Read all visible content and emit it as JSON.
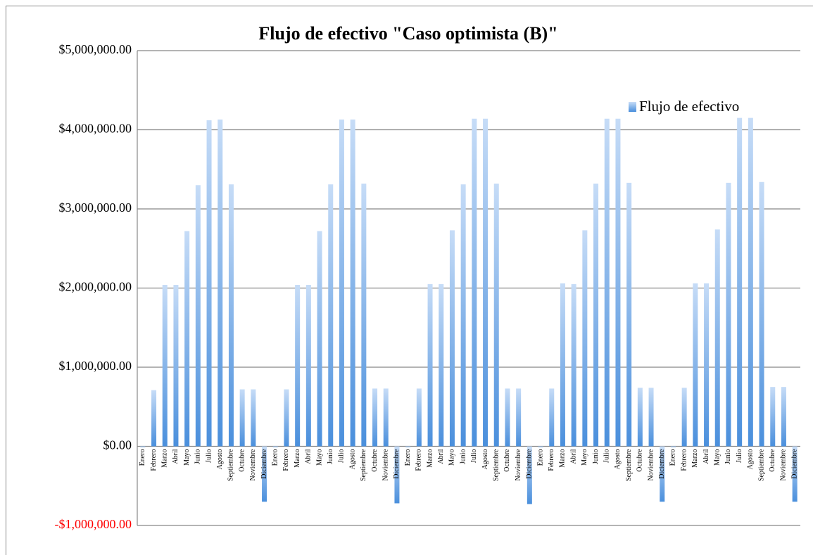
{
  "chart_data": {
    "type": "bar",
    "title": "Flujo de efectivo \"Caso optimista (B)\"",
    "legend_label": "Flujo de efectivo",
    "color": "#4a8fdc",
    "negative_tick_color": "#ff0000",
    "categories": [
      "Enero",
      "Febrero",
      "Marzo",
      "Abril",
      "Mayo",
      "Junio",
      "Julio",
      "Agosto",
      "Septiembre",
      "Octubre",
      "Noviembre",
      "Diciembre",
      "Enero",
      "Febrero",
      "Marzo",
      "Abril",
      "Mayo",
      "Junio",
      "Julio",
      "Agosto",
      "Septiembre",
      "Octubre",
      "Noviembre",
      "Diciembre",
      "Enero",
      "Febrero",
      "Marzo",
      "Abril",
      "Mayo",
      "Junio",
      "Julio",
      "Agosto",
      "Septiembre",
      "Octubre",
      "Noviembre",
      "Diciembre",
      "Enero",
      "Febrero",
      "Marzo",
      "Abril",
      "Mayo",
      "Junio",
      "Julio",
      "Agosto",
      "Septiembre",
      "Octubre",
      "Noviembre",
      "Diciembre",
      "Enero",
      "Febrero",
      "Marzo",
      "Abril",
      "Mayo",
      "Junio",
      "Julio",
      "Agosto",
      "Septiembre",
      "Octubre",
      "Noviembre",
      "Diciembre"
    ],
    "values": [
      -10000,
      710000,
      2040000,
      2040000,
      2720000,
      3300000,
      4120000,
      4130000,
      3310000,
      720000,
      720000,
      -700000,
      -10000,
      720000,
      2040000,
      2040000,
      2720000,
      3310000,
      4130000,
      4130000,
      3320000,
      730000,
      730000,
      -720000,
      -10000,
      730000,
      2050000,
      2050000,
      2730000,
      3310000,
      4140000,
      4140000,
      3320000,
      730000,
      730000,
      -730000,
      -10000,
      730000,
      2060000,
      2050000,
      2730000,
      3320000,
      4140000,
      4140000,
      3330000,
      740000,
      740000,
      -700000,
      -10000,
      740000,
      2060000,
      2060000,
      2740000,
      3330000,
      4150000,
      4150000,
      3340000,
      750000,
      750000,
      -700000
    ],
    "ylim": [
      -1000000,
      5000000
    ],
    "yticks": [
      {
        "value": -1000000,
        "label": "-$1,000,000.00"
      },
      {
        "value": 0,
        "label": "$0.00"
      },
      {
        "value": 1000000,
        "label": "$1,000,000.00"
      },
      {
        "value": 2000000,
        "label": "$2,000,000.00"
      },
      {
        "value": 3000000,
        "label": "$3,000,000.00"
      },
      {
        "value": 4000000,
        "label": "$4,000,000.00"
      },
      {
        "value": 5000000,
        "label": "$5,000,000.00"
      }
    ],
    "grid": true
  }
}
